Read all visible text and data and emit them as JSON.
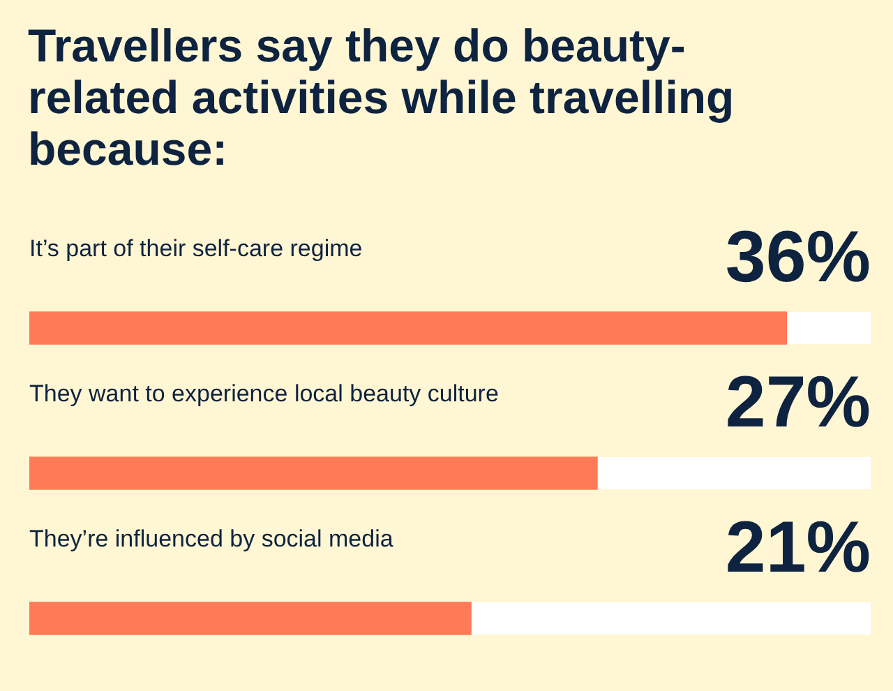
{
  "chart_data": {
    "type": "bar",
    "orientation": "horizontal",
    "title": "Travellers say they do beauty-related activities while travelling because:",
    "categories": [
      "It’s part of their self-care regime",
      "They want to experience local beauty culture",
      "They’re influenced by social media"
    ],
    "values": [
      36,
      27,
      21
    ],
    "color": "#ff7b57",
    "value_labels": [
      "36%",
      "27%",
      "21%"
    ],
    "tick_labels": false,
    "legend": false
  }
}
